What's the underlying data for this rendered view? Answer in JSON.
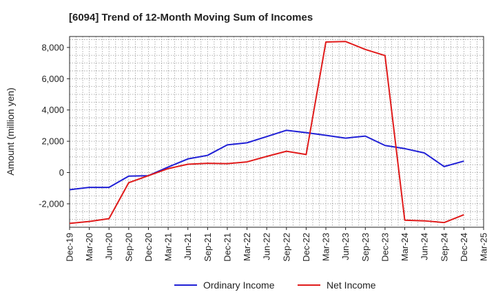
{
  "chart_data": {
    "type": "line",
    "title": "[6094]  Trend of 12-Month Moving Sum of Incomes",
    "xlabel": "",
    "ylabel": "Amount (million yen)",
    "x": [
      "Dec-19",
      "Mar-20",
      "Jun-20",
      "Sep-20",
      "Dec-20",
      "Mar-21",
      "Jun-21",
      "Sep-21",
      "Dec-21",
      "Mar-22",
      "Jun-22",
      "Sep-22",
      "Dec-22",
      "Mar-23",
      "Jun-23",
      "Sep-23",
      "Dec-23",
      "Mar-24",
      "Jun-24",
      "Sep-24",
      "Dec-24",
      "Mar-25"
    ],
    "ylim": [
      -3500,
      8700
    ],
    "yticks": [
      -2000,
      0,
      2000,
      4000,
      6000,
      8000
    ],
    "ytick_labels": [
      "-2,000",
      "0",
      "2,000",
      "4,000",
      "6,000",
      "8,000"
    ],
    "grid": true,
    "legend_position": "bottom",
    "series": [
      {
        "name": "Ordinary Income",
        "color": "#1f1fd6",
        "values": [
          -1100,
          -950,
          -950,
          -230,
          -200,
          350,
          870,
          1100,
          1770,
          1900,
          2300,
          2700,
          2550,
          2380,
          2200,
          2330,
          1730,
          1530,
          1250,
          380,
          730,
          null
        ]
      },
      {
        "name": "Net Income",
        "color": "#e01a1a",
        "values": [
          -3250,
          -3130,
          -2950,
          -650,
          -200,
          250,
          530,
          590,
          570,
          680,
          1030,
          1360,
          1150,
          8350,
          8380,
          7870,
          7480,
          -3050,
          -3090,
          -3200,
          -2700,
          null
        ]
      }
    ]
  }
}
